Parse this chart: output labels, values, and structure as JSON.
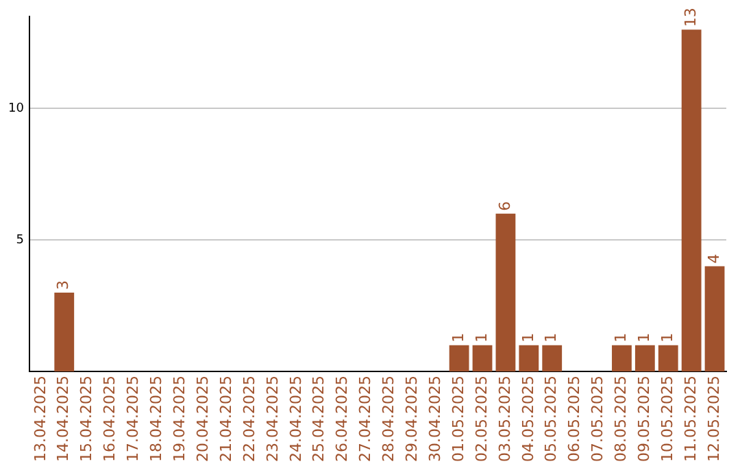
{
  "chart_data": {
    "type": "bar",
    "categories": [
      "13.04.2025",
      "14.04.2025",
      "15.04.2025",
      "16.04.2025",
      "17.04.2025",
      "18.04.2025",
      "19.04.2025",
      "20.04.2025",
      "21.04.2025",
      "22.04.2025",
      "23.04.2025",
      "24.04.2025",
      "25.04.2025",
      "26.04.2025",
      "27.04.2025",
      "28.04.2025",
      "29.04.2025",
      "30.04.2025",
      "01.05.2025",
      "02.05.2025",
      "03.05.2025",
      "04.05.2025",
      "05.05.2025",
      "06.05.2025",
      "07.05.2025",
      "08.05.2025",
      "09.05.2025",
      "10.05.2025",
      "11.05.2025",
      "12.05.2025"
    ],
    "values": [
      0,
      3,
      0,
      0,
      0,
      0,
      0,
      0,
      0,
      0,
      0,
      0,
      0,
      0,
      0,
      0,
      0,
      0,
      1,
      1,
      6,
      1,
      1,
      0,
      0,
      1,
      1,
      1,
      13,
      4
    ],
    "value_labels": [
      null,
      "3",
      null,
      null,
      null,
      null,
      null,
      null,
      null,
      null,
      null,
      null,
      null,
      null,
      null,
      null,
      null,
      null,
      "1",
      "1",
      "6",
      "1",
      "1",
      null,
      null,
      "1",
      "1",
      "1",
      "13",
      "4"
    ],
    "color": "#a0522d",
    "ylim": [
      0,
      13.5
    ],
    "yticks": [
      5,
      10
    ],
    "grid": "y",
    "legend": false
  }
}
